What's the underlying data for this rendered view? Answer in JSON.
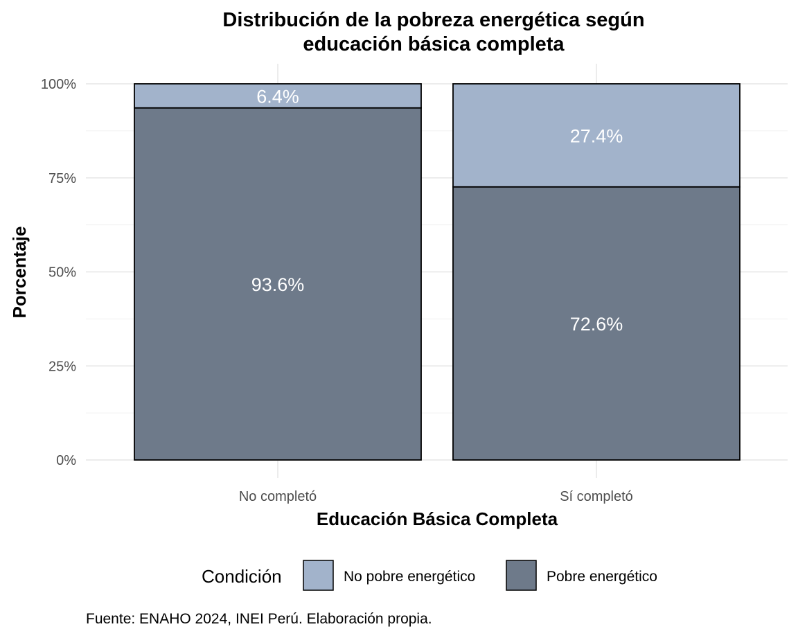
{
  "chart_data": {
    "type": "bar",
    "stacked": true,
    "title": "Distribución de la pobreza energética según educación básica completa",
    "title_lines": [
      "Distribución de la pobreza energética según",
      "educación básica completa"
    ],
    "xlabel": "Educación Básica Completa",
    "ylabel": "Porcentaje",
    "categories": [
      "No completó",
      "Sí completó"
    ],
    "series": [
      {
        "name": "Pobre energético",
        "values": [
          93.6,
          72.6
        ],
        "labels": [
          "93.6%",
          "72.6%"
        ],
        "color": "#6e7a8a"
      },
      {
        "name": "No pobre energético",
        "values": [
          6.4,
          27.4
        ],
        "labels": [
          "6.4%",
          "27.4%"
        ],
        "color": "#a2b3cb"
      }
    ],
    "ylim": [
      0,
      100
    ],
    "yticks": [
      0,
      25,
      50,
      75,
      100
    ],
    "ytick_labels": [
      "0%",
      "25%",
      "50%",
      "75%",
      "100%"
    ],
    "grid": true,
    "legend": {
      "title": "Condición",
      "position": "bottom",
      "entries": [
        {
          "label": "No pobre energético",
          "color": "#a2b3cb"
        },
        {
          "label": "Pobre energético",
          "color": "#6e7a8a"
        }
      ]
    },
    "caption": "Fuente: ENAHO 2024, INEI Perú. Elaboración propia."
  }
}
